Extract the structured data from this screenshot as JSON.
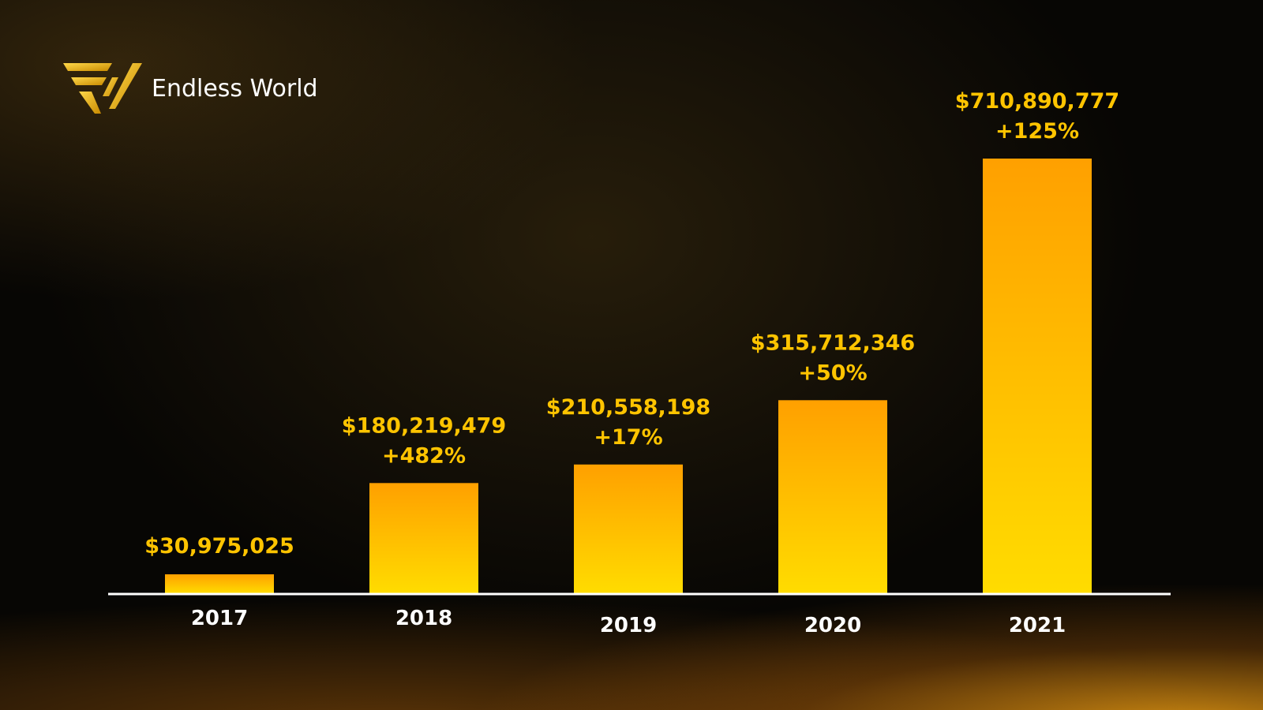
{
  "brand": {
    "name": "Endless World"
  },
  "chart_data": {
    "type": "bar",
    "title": "",
    "xlabel": "",
    "ylabel": "",
    "categories": [
      "2017",
      "2018",
      "2019",
      "2020",
      "2021"
    ],
    "values": [
      30975025,
      180219479,
      210558198,
      315712346,
      710890777
    ],
    "value_labels": [
      "$30,975,025",
      "$180,219,479",
      "$210,558,198",
      "$315,712,346",
      "$710,890,777"
    ],
    "growth_labels": [
      "",
      "+482%",
      "+17%",
      "+50%",
      "+125%"
    ],
    "ylim": [
      0,
      710890777
    ],
    "grid": false,
    "colors": {
      "bar_top": "#ffa000",
      "bar_bottom": "#ffdc00",
      "label": "#ffc400",
      "axis": "#ffffff"
    }
  }
}
